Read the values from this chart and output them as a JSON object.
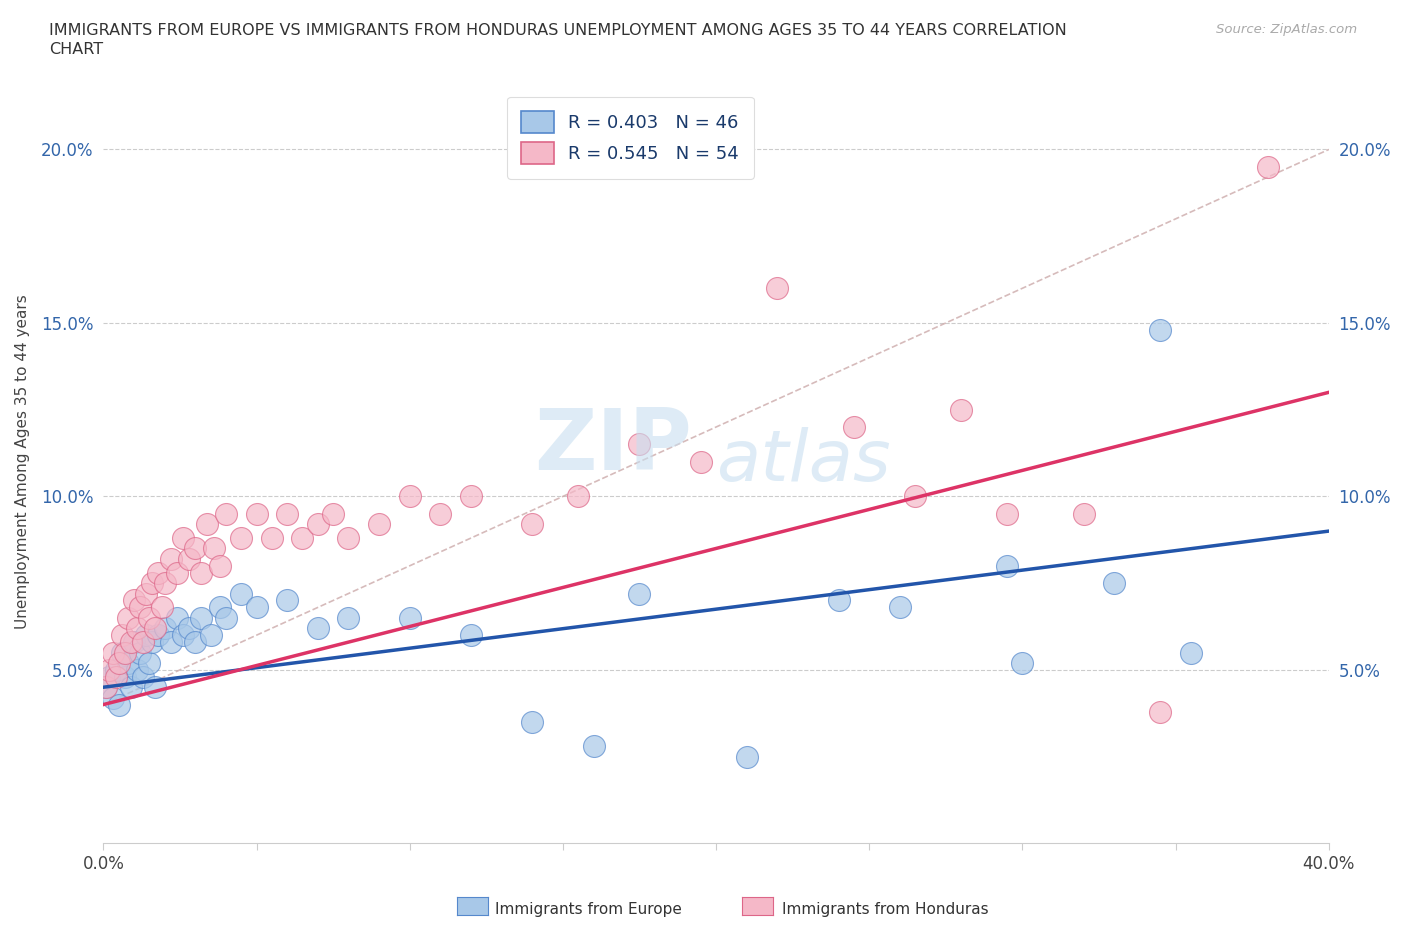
{
  "title_line1": "IMMIGRANTS FROM EUROPE VS IMMIGRANTS FROM HONDURAS UNEMPLOYMENT AMONG AGES 35 TO 44 YEARS CORRELATION",
  "title_line2": "CHART",
  "source": "Source: ZipAtlas.com",
  "ylabel": "Unemployment Among Ages 35 to 44 years",
  "xlim": [
    0.0,
    0.4
  ],
  "ylim": [
    0.0,
    0.22
  ],
  "europe_color": "#a8c8e8",
  "europe_edge_color": "#5588cc",
  "honduras_color": "#f5b8c8",
  "honduras_edge_color": "#dd6688",
  "europe_line_color": "#2255aa",
  "honduras_line_color": "#dd3366",
  "diag_line_color": "#ccaaaa",
  "watermark_color": "#c8dff0",
  "europe_scatter_x": [
    0.001,
    0.002,
    0.003,
    0.004,
    0.005,
    0.006,
    0.007,
    0.008,
    0.009,
    0.01,
    0.011,
    0.012,
    0.013,
    0.014,
    0.015,
    0.016,
    0.017,
    0.018,
    0.02,
    0.022,
    0.024,
    0.026,
    0.028,
    0.03,
    0.032,
    0.035,
    0.038,
    0.04,
    0.045,
    0.05,
    0.06,
    0.07,
    0.08,
    0.1,
    0.12,
    0.14,
    0.16,
    0.175,
    0.21,
    0.24,
    0.26,
    0.295,
    0.3,
    0.33,
    0.345,
    0.355
  ],
  "europe_scatter_y": [
    0.045,
    0.048,
    0.042,
    0.05,
    0.04,
    0.055,
    0.048,
    0.052,
    0.045,
    0.058,
    0.05,
    0.055,
    0.048,
    0.06,
    0.052,
    0.058,
    0.045,
    0.06,
    0.062,
    0.058,
    0.065,
    0.06,
    0.062,
    0.058,
    0.065,
    0.06,
    0.068,
    0.065,
    0.072,
    0.068,
    0.07,
    0.062,
    0.065,
    0.065,
    0.06,
    0.035,
    0.028,
    0.072,
    0.025,
    0.07,
    0.068,
    0.08,
    0.052,
    0.075,
    0.148,
    0.055
  ],
  "honduras_scatter_x": [
    0.001,
    0.002,
    0.003,
    0.004,
    0.005,
    0.006,
    0.007,
    0.008,
    0.009,
    0.01,
    0.011,
    0.012,
    0.013,
    0.014,
    0.015,
    0.016,
    0.017,
    0.018,
    0.019,
    0.02,
    0.022,
    0.024,
    0.026,
    0.028,
    0.03,
    0.032,
    0.034,
    0.036,
    0.038,
    0.04,
    0.045,
    0.05,
    0.055,
    0.06,
    0.065,
    0.07,
    0.075,
    0.08,
    0.09,
    0.1,
    0.11,
    0.12,
    0.14,
    0.155,
    0.175,
    0.195,
    0.22,
    0.245,
    0.265,
    0.28,
    0.295,
    0.32,
    0.345,
    0.38
  ],
  "honduras_scatter_y": [
    0.045,
    0.05,
    0.055,
    0.048,
    0.052,
    0.06,
    0.055,
    0.065,
    0.058,
    0.07,
    0.062,
    0.068,
    0.058,
    0.072,
    0.065,
    0.075,
    0.062,
    0.078,
    0.068,
    0.075,
    0.082,
    0.078,
    0.088,
    0.082,
    0.085,
    0.078,
    0.092,
    0.085,
    0.08,
    0.095,
    0.088,
    0.095,
    0.088,
    0.095,
    0.088,
    0.092,
    0.095,
    0.088,
    0.092,
    0.1,
    0.095,
    0.1,
    0.092,
    0.1,
    0.115,
    0.11,
    0.16,
    0.12,
    0.1,
    0.125,
    0.095,
    0.095,
    0.038,
    0.195
  ]
}
